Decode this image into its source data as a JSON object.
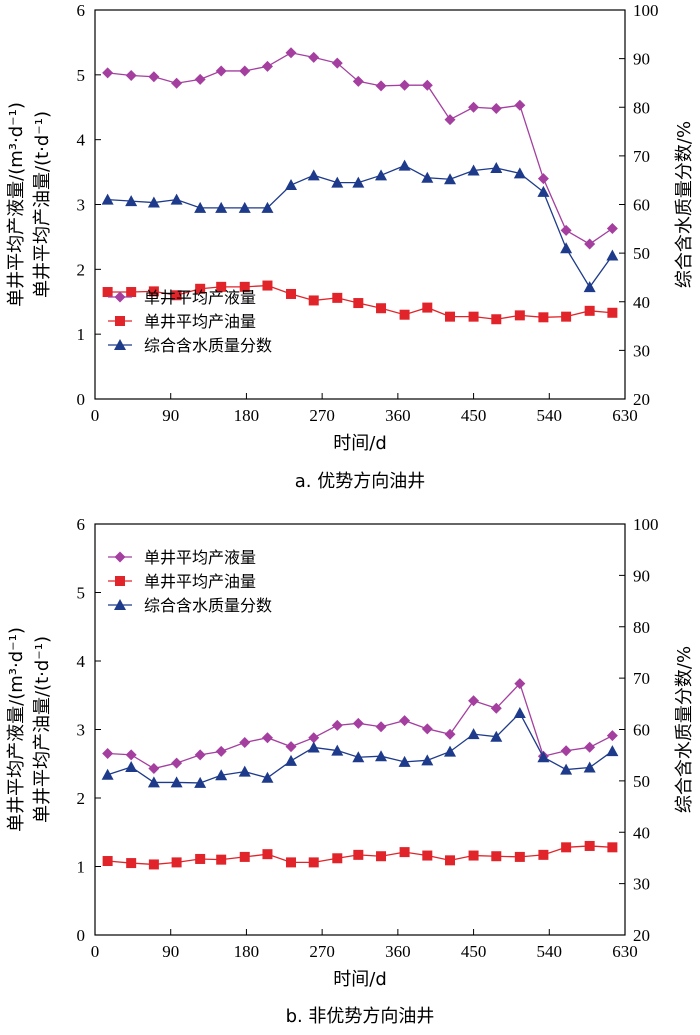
{
  "colors": {
    "liquid": "#a43fa0",
    "oil": "#e0242a",
    "water": "#1e3a8a"
  },
  "chart_data": [
    {
      "type": "line",
      "caption": "a. 优势方向油井",
      "xlabel": "时间/d",
      "ylabel_liquid": "单井平均产液量/(m³·d⁻¹)",
      "ylabel_oil": "单井平均产油量/(t·d⁻¹)",
      "y2label": "综合含水质量分数/%",
      "xlim": [
        0,
        630
      ],
      "ylim": [
        0,
        6
      ],
      "y2lim": [
        20,
        100
      ],
      "xticks": [
        "0",
        "90",
        "180",
        "270",
        "360",
        "450",
        "540",
        "630"
      ],
      "yticks": [
        "0",
        "1",
        "2",
        "3",
        "4",
        "5",
        "6"
      ],
      "y2ticks": [
        "20",
        "30",
        "40",
        "50",
        "60",
        "70",
        "80",
        "90",
        "100"
      ],
      "legend_position": "lower-left",
      "series": [
        {
          "name": "单井平均产液量",
          "axis": "left",
          "marker": "diamond",
          "x": [
            15,
            43,
            70,
            97,
            125,
            150,
            178,
            205,
            233,
            260,
            288,
            313,
            340,
            368,
            395,
            422,
            450,
            477,
            505,
            533,
            560,
            588,
            615
          ],
          "values": [
            5.03,
            4.99,
            4.97,
            4.87,
            4.93,
            5.06,
            5.06,
            5.13,
            5.34,
            5.27,
            5.18,
            4.9,
            4.83,
            4.84,
            4.84,
            4.31,
            4.5,
            4.48,
            4.53,
            3.4,
            2.6,
            2.39,
            2.63
          ]
        },
        {
          "name": "单井平均产油量",
          "axis": "left",
          "marker": "square",
          "x": [
            15,
            43,
            70,
            97,
            125,
            150,
            178,
            205,
            233,
            260,
            288,
            313,
            340,
            368,
            395,
            422,
            450,
            477,
            505,
            533,
            560,
            588,
            615
          ],
          "values": [
            1.65,
            1.65,
            1.66,
            1.6,
            1.7,
            1.73,
            1.73,
            1.75,
            1.62,
            1.52,
            1.56,
            1.48,
            1.4,
            1.3,
            1.41,
            1.27,
            1.27,
            1.23,
            1.29,
            1.26,
            1.27,
            1.36,
            1.33
          ]
        },
        {
          "name": "综合含水质量分数",
          "axis": "right",
          "marker": "triangle",
          "x": [
            15,
            43,
            70,
            97,
            125,
            150,
            178,
            205,
            233,
            260,
            288,
            313,
            340,
            368,
            395,
            422,
            450,
            477,
            505,
            533,
            560,
            588,
            615
          ],
          "values": [
            61,
            60.7,
            60.4,
            61,
            59.3,
            59.3,
            59.3,
            59.3,
            64,
            66,
            64.5,
            64.5,
            66,
            68,
            65.5,
            65.2,
            67,
            67.5,
            66.4,
            62.6,
            51,
            43,
            49.5
          ]
        }
      ]
    },
    {
      "type": "line",
      "caption": "b. 非优势方向油井",
      "xlabel": "时间/d",
      "ylabel_liquid": "单井平均产液量/(m³·d⁻¹)",
      "ylabel_oil": "单井平均产油量/(t·d⁻¹)",
      "y2label": "综合含水质量分数/%",
      "xlim": [
        0,
        630
      ],
      "ylim": [
        0,
        6
      ],
      "y2lim": [
        20,
        100
      ],
      "xticks": [
        "0",
        "90",
        "180",
        "270",
        "360",
        "450",
        "540",
        "630"
      ],
      "yticks": [
        "0",
        "1",
        "2",
        "3",
        "4",
        "5",
        "6"
      ],
      "y2ticks": [
        "20",
        "30",
        "40",
        "50",
        "60",
        "70",
        "80",
        "90",
        "100"
      ],
      "legend_position": "upper-left",
      "series": [
        {
          "name": "单井平均产液量",
          "axis": "left",
          "marker": "diamond",
          "x": [
            15,
            43,
            70,
            97,
            125,
            150,
            178,
            205,
            233,
            260,
            288,
            313,
            340,
            368,
            395,
            422,
            450,
            477,
            505,
            533,
            560,
            588,
            615
          ],
          "values": [
            2.65,
            2.63,
            2.43,
            2.51,
            2.63,
            2.68,
            2.81,
            2.88,
            2.75,
            2.88,
            3.06,
            3.09,
            3.04,
            3.13,
            3.01,
            2.93,
            3.42,
            3.31,
            3.67,
            2.61,
            2.69,
            2.74,
            2.91
          ]
        },
        {
          "name": "单井平均产油量",
          "axis": "left",
          "marker": "square",
          "x": [
            15,
            43,
            70,
            97,
            125,
            150,
            178,
            205,
            233,
            260,
            288,
            313,
            340,
            368,
            395,
            422,
            450,
            477,
            505,
            533,
            560,
            588,
            615
          ],
          "values": [
            1.08,
            1.05,
            1.03,
            1.06,
            1.11,
            1.1,
            1.14,
            1.18,
            1.06,
            1.06,
            1.12,
            1.17,
            1.15,
            1.21,
            1.16,
            1.09,
            1.16,
            1.15,
            1.14,
            1.17,
            1.28,
            1.3,
            1.28
          ]
        },
        {
          "name": "综合含水质量分数",
          "axis": "right",
          "marker": "triangle",
          "x": [
            15,
            43,
            70,
            97,
            125,
            150,
            178,
            205,
            233,
            260,
            288,
            313,
            340,
            368,
            395,
            422,
            450,
            477,
            505,
            533,
            560,
            588,
            615
          ],
          "values": [
            51.2,
            52.7,
            49.7,
            49.7,
            49.6,
            51.1,
            51.8,
            50.6,
            53.9,
            56.5,
            55.9,
            54.6,
            54.8,
            53.7,
            54,
            55.7,
            59.1,
            58.6,
            63.2,
            54.6,
            52.2,
            52.6,
            55.8
          ]
        }
      ]
    }
  ]
}
